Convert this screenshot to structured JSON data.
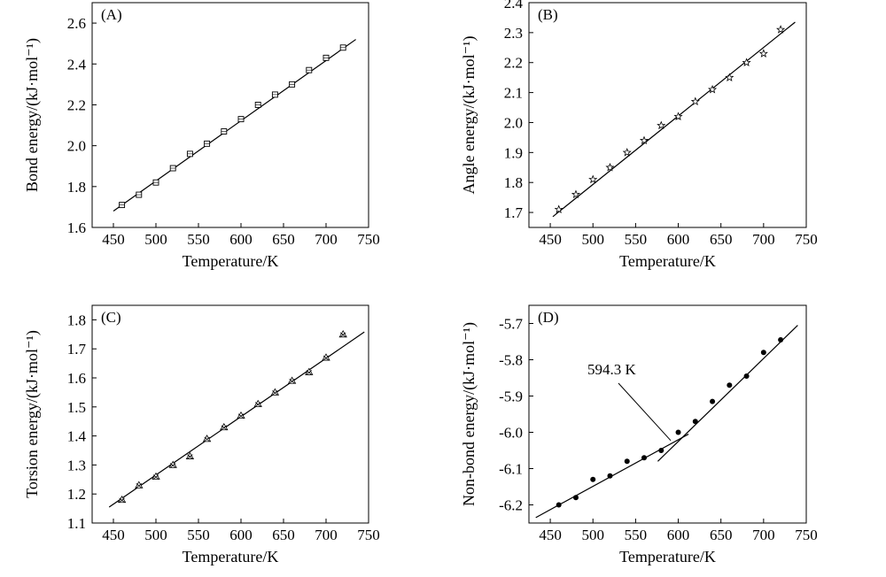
{
  "chart_data": [
    {
      "type": "scatter",
      "panel": "(A)",
      "xlabel": "Temperature/K",
      "ylabel": "Bond energy/(kJ·mol⁻¹)",
      "xlim": [
        425,
        750
      ],
      "ylim": [
        1.6,
        2.7
      ],
      "xticks": [
        450,
        500,
        550,
        600,
        650,
        700,
        750
      ],
      "xtick_labels": [
        "450",
        "500",
        "550",
        "600",
        "650",
        "700",
        "750"
      ],
      "yticks": [
        1.6,
        1.8,
        2.0,
        2.2,
        2.4,
        2.6
      ],
      "ytick_labels": [
        "1.6",
        "1.8",
        "2.0",
        "2.2",
        "2.4",
        "2.6"
      ],
      "marker": "square",
      "x": [
        460,
        480,
        500,
        520,
        540,
        560,
        580,
        600,
        620,
        640,
        660,
        680,
        700,
        720
      ],
      "y": [
        1.71,
        1.76,
        1.82,
        1.89,
        1.96,
        2.01,
        2.07,
        2.13,
        2.2,
        2.25,
        2.3,
        2.37,
        2.43,
        2.48
      ],
      "fit_lines": [
        {
          "x": [
            450,
            735
          ],
          "y": [
            1.68,
            2.52
          ]
        }
      ]
    },
    {
      "type": "scatter",
      "panel": "(B)",
      "xlabel": "Temperature/K",
      "ylabel": "Angle energy/(kJ·mol⁻¹)",
      "xlim": [
        425,
        750
      ],
      "ylim": [
        1.65,
        2.4
      ],
      "xticks": [
        450,
        500,
        550,
        600,
        650,
        700,
        750
      ],
      "xtick_labels": [
        "450",
        "500",
        "550",
        "600",
        "650",
        "700",
        "750"
      ],
      "yticks": [
        1.7,
        1.8,
        1.9,
        2.0,
        2.1,
        2.2,
        2.3,
        2.4
      ],
      "ytick_labels": [
        "1.7",
        "1.8",
        "1.9",
        "2.0",
        "2.1",
        "2.2",
        "2.3",
        "2.4"
      ],
      "marker": "star",
      "x": [
        460,
        480,
        500,
        520,
        540,
        560,
        580,
        600,
        620,
        640,
        660,
        680,
        700,
        720
      ],
      "y": [
        1.71,
        1.76,
        1.81,
        1.85,
        1.9,
        1.94,
        1.99,
        2.02,
        2.07,
        2.11,
        2.15,
        2.2,
        2.23,
        2.31
      ],
      "fit_lines": [
        {
          "x": [
            453,
            737
          ],
          "y": [
            1.686,
            2.335
          ]
        }
      ]
    },
    {
      "type": "scatter",
      "panel": "(C)",
      "xlabel": "Temperature/K",
      "ylabel": "Torsion energy/(kJ·mol⁻¹)",
      "xlim": [
        425,
        750
      ],
      "ylim": [
        1.1,
        1.85
      ],
      "xticks": [
        450,
        500,
        550,
        600,
        650,
        700,
        750
      ],
      "xtick_labels": [
        "450",
        "500",
        "550",
        "600",
        "650",
        "700",
        "750"
      ],
      "yticks": [
        1.1,
        1.2,
        1.3,
        1.4,
        1.5,
        1.6,
        1.7,
        1.8
      ],
      "ytick_labels": [
        "1.1",
        "1.2",
        "1.3",
        "1.4",
        "1.5",
        "1.6",
        "1.7",
        "1.8"
      ],
      "marker": "triangle-x",
      "x": [
        460,
        480,
        500,
        520,
        540,
        560,
        580,
        600,
        620,
        640,
        660,
        680,
        700,
        720
      ],
      "y": [
        1.18,
        1.23,
        1.26,
        1.3,
        1.33,
        1.39,
        1.43,
        1.47,
        1.51,
        1.55,
        1.59,
        1.62,
        1.67,
        1.75
      ],
      "fit_lines": [
        {
          "x": [
            445,
            745
          ],
          "y": [
            1.155,
            1.758
          ]
        }
      ]
    },
    {
      "type": "scatter",
      "panel": "(D)",
      "xlabel": "Temperature/K",
      "ylabel": "Non-bond energy/(kJ·mol⁻¹)",
      "xlim": [
        425,
        750
      ],
      "ylim": [
        -6.25,
        -5.65
      ],
      "xticks": [
        450,
        500,
        550,
        600,
        650,
        700,
        750
      ],
      "xtick_labels": [
        "450",
        "500",
        "550",
        "600",
        "650",
        "700",
        "750"
      ],
      "yticks": [
        -6.2,
        -6.1,
        -6.0,
        -5.9,
        -5.8,
        -5.7
      ],
      "ytick_labels": [
        "-6.2",
        "-6.1",
        "-6.0",
        "-5.9",
        "-5.8",
        "-5.7"
      ],
      "marker": "dot",
      "x": [
        460,
        480,
        500,
        520,
        540,
        560,
        580,
        600,
        620,
        640,
        660,
        680,
        700,
        720
      ],
      "y": [
        -6.2,
        -6.18,
        -6.13,
        -6.12,
        -6.08,
        -6.07,
        -6.05,
        -6.0,
        -5.97,
        -5.915,
        -5.87,
        -5.845,
        -5.78,
        -5.745
      ],
      "fit_lines": [
        {
          "x": [
            433,
            612
          ],
          "y": [
            -6.235,
            -6.005
          ]
        },
        {
          "x": [
            576,
            740
          ],
          "y": [
            -6.08,
            -5.705
          ]
        }
      ],
      "annotation": {
        "text": "594.3 K",
        "x": 594.3,
        "y": -6.03
      }
    }
  ]
}
